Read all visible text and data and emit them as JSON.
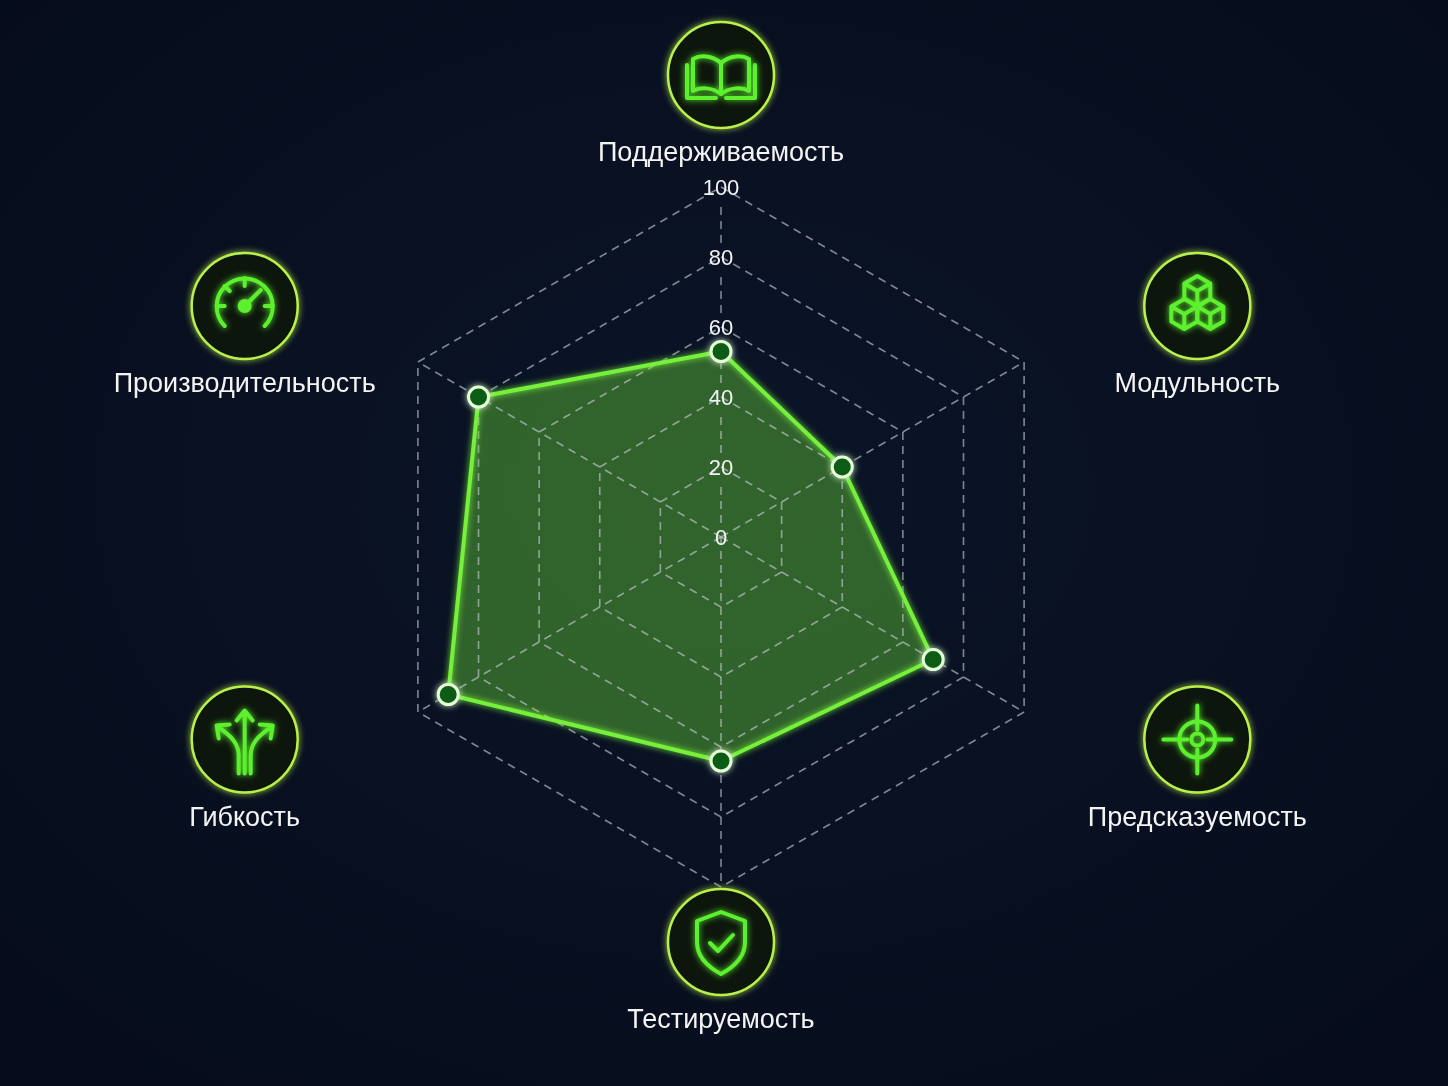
{
  "chart_data": {
    "type": "radar",
    "categories": [
      "Поддерживаемость",
      "Модульность",
      "Предсказуемость",
      "Тестируемость",
      "Гибкость",
      "Производительность"
    ],
    "series": [
      {
        "color": "#76f03a",
        "values": [
          53,
          40,
          70,
          64,
          90,
          80
        ]
      }
    ],
    "ylim": [
      0,
      100
    ],
    "yticks": [
      0,
      20,
      40,
      60,
      80,
      100
    ],
    "grid": true,
    "marker": "circle"
  }
}
